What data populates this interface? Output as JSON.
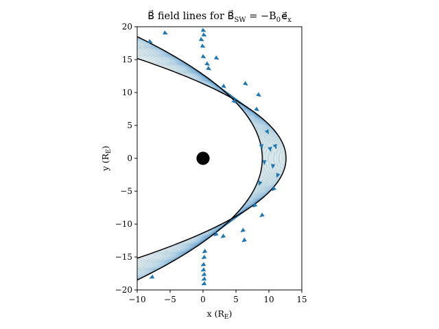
{
  "chart_data": {
    "type": "streamplot",
    "title": "B⃗ field lines for B⃗",
    "title_sub": "SW",
    "title_rhs": " = −B",
    "title_rhs_sub": "0",
    "title_rhs_end": "e⃗",
    "title_rhs_end_sub": "x",
    "xlabel": "x (R",
    "xlabel_sub": "E",
    "xlabel_end": ")",
    "ylabel": "y (R",
    "ylabel_sub": "E",
    "ylabel_end": ")",
    "xlim": [
      -10,
      15
    ],
    "ylim": [
      -20,
      20
    ],
    "xticks": [
      -10,
      -5,
      0,
      5,
      10,
      15
    ],
    "yticks": [
      -20,
      -15,
      -10,
      -5,
      0,
      5,
      10,
      15,
      20
    ],
    "xtick_labels": [
      "−10",
      "−5",
      "0",
      "5",
      "10",
      "15"
    ],
    "ytick_labels": [
      "−20",
      "−15",
      "−10",
      "−5",
      "0",
      "5",
      "10",
      "15",
      "20"
    ],
    "grid": false,
    "planet": {
      "x": 0,
      "y": 0,
      "radius": 1
    },
    "magnetopause": {
      "nose_x": 9.0,
      "flare": 4.5
    },
    "bow_shock": {
      "nose_x": 12.6,
      "flare": 2.55
    },
    "colors": {
      "streamline": "#1f77b4",
      "boundary": "#000000",
      "planet": "#000000"
    },
    "arrows": [
      {
        "x": -8.0,
        "y": 17.7,
        "dir": "down"
      },
      {
        "x": -5.7,
        "y": 19.0,
        "dir": "down"
      },
      {
        "x": 0.1,
        "y": 19.4,
        "dir": "down"
      },
      {
        "x": 0.2,
        "y": 18.7,
        "dir": "down"
      },
      {
        "x": -0.2,
        "y": 18.0,
        "dir": "down"
      },
      {
        "x": 0.0,
        "y": 17.0,
        "dir": "down"
      },
      {
        "x": 0.1,
        "y": 15.4,
        "dir": "down"
      },
      {
        "x": 2.1,
        "y": 15.2,
        "dir": "down"
      },
      {
        "x": 0.7,
        "y": 14.3,
        "dir": "down"
      },
      {
        "x": 0.9,
        "y": 13.6,
        "dir": "down"
      },
      {
        "x": 3.2,
        "y": 10.9,
        "dir": "down"
      },
      {
        "x": 6.5,
        "y": 11.3,
        "dir": "down"
      },
      {
        "x": 4.8,
        "y": 8.6,
        "dir": "down"
      },
      {
        "x": 8.5,
        "y": 9.6,
        "dir": "down"
      },
      {
        "x": 8.2,
        "y": 7.4,
        "dir": "down"
      },
      {
        "x": 9.8,
        "y": 4.0,
        "dir": "down"
      },
      {
        "x": 8.9,
        "y": 1.8,
        "dir": "down"
      },
      {
        "x": 10.2,
        "y": 1.4,
        "dir": "down"
      },
      {
        "x": 11.0,
        "y": 1.8,
        "dir": "down"
      },
      {
        "x": 9.3,
        "y": -0.6,
        "dir": "down"
      },
      {
        "x": 10.6,
        "y": -1.2,
        "dir": "down"
      },
      {
        "x": 11.3,
        "y": -2.6,
        "dir": "down"
      },
      {
        "x": 8.6,
        "y": -3.8,
        "dir": "down"
      },
      {
        "x": 10.7,
        "y": -4.7,
        "dir": "down"
      },
      {
        "x": 7.8,
        "y": -7.2,
        "dir": "down"
      },
      {
        "x": 8.9,
        "y": -8.7,
        "dir": "down"
      },
      {
        "x": 6.0,
        "y": -11.0,
        "dir": "down"
      },
      {
        "x": 1.9,
        "y": -11.6,
        "dir": "down"
      },
      {
        "x": 3.0,
        "y": -11.9,
        "dir": "down"
      },
      {
        "x": 6.2,
        "y": -12.5,
        "dir": "down"
      },
      {
        "x": 0.2,
        "y": -14.2,
        "dir": "down"
      },
      {
        "x": 0.1,
        "y": -15.1,
        "dir": "down"
      },
      {
        "x": 0.0,
        "y": -16.2,
        "dir": "down"
      },
      {
        "x": 0.0,
        "y": -17.0,
        "dir": "down"
      },
      {
        "x": 0.1,
        "y": -17.7,
        "dir": "down"
      },
      {
        "x": 0.1,
        "y": -18.4,
        "dir": "down"
      },
      {
        "x": 0.1,
        "y": -19.1,
        "dir": "down"
      },
      {
        "x": -7.8,
        "y": -18.1,
        "dir": "down"
      }
    ]
  }
}
